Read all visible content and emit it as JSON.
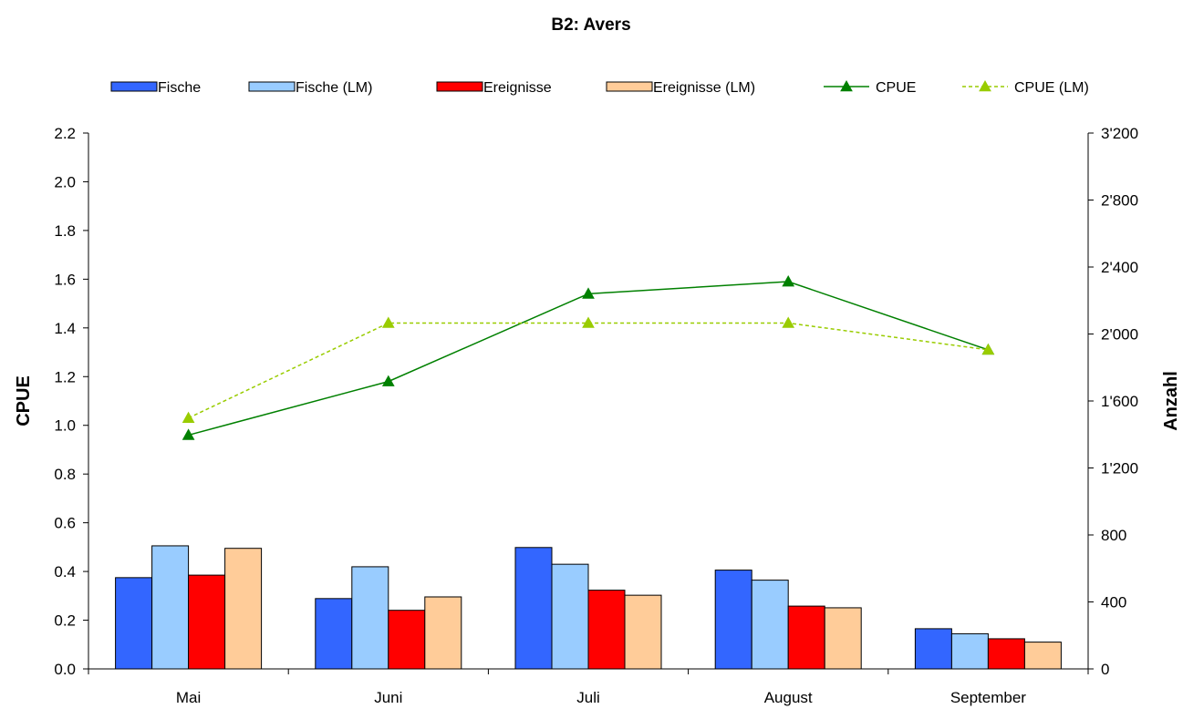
{
  "chart_data": {
    "type": "bar",
    "title": "B2: Avers",
    "categories": [
      "Mai",
      "Juni",
      "Juli",
      "August",
      "September"
    ],
    "y_left": {
      "label": "CPUE",
      "lim": [
        0.0,
        2.2
      ],
      "ticks": [
        "0.0",
        "0.2",
        "0.4",
        "0.6",
        "0.8",
        "1.0",
        "1.2",
        "1.4",
        "1.6",
        "1.8",
        "2.0",
        "2.2"
      ]
    },
    "y_right": {
      "label": "Anzahl",
      "lim": [
        0,
        3200
      ],
      "ticks": [
        "0",
        "400",
        "800",
        "1'200",
        "1'600",
        "2'000",
        "2'400",
        "2'800",
        "3'200"
      ]
    },
    "grid": false,
    "legend_position": "top",
    "bar_series": [
      {
        "name": "Fische",
        "color": "#3366ff",
        "axis": "right",
        "values": [
          545,
          420,
          725,
          590,
          240
        ]
      },
      {
        "name": "Fische (LM)",
        "color": "#99ccff",
        "axis": "right",
        "values": [
          735,
          610,
          625,
          530,
          210
        ]
      },
      {
        "name": "Ereignisse",
        "color": "#ff0000",
        "axis": "right",
        "values": [
          560,
          350,
          470,
          375,
          180
        ]
      },
      {
        "name": "Ereignisse (LM)",
        "color": "#ffcc99",
        "axis": "right",
        "values": [
          720,
          430,
          440,
          365,
          160
        ]
      }
    ],
    "line_series": [
      {
        "name": "CPUE",
        "color": "#008000",
        "dashed": false,
        "axis": "left",
        "values": [
          0.96,
          1.18,
          1.54,
          1.59,
          1.31
        ]
      },
      {
        "name": "CPUE (LM)",
        "color": "#99cc00",
        "dashed": true,
        "axis": "left",
        "values": [
          1.03,
          1.42,
          1.42,
          1.42,
          1.31
        ]
      }
    ]
  }
}
